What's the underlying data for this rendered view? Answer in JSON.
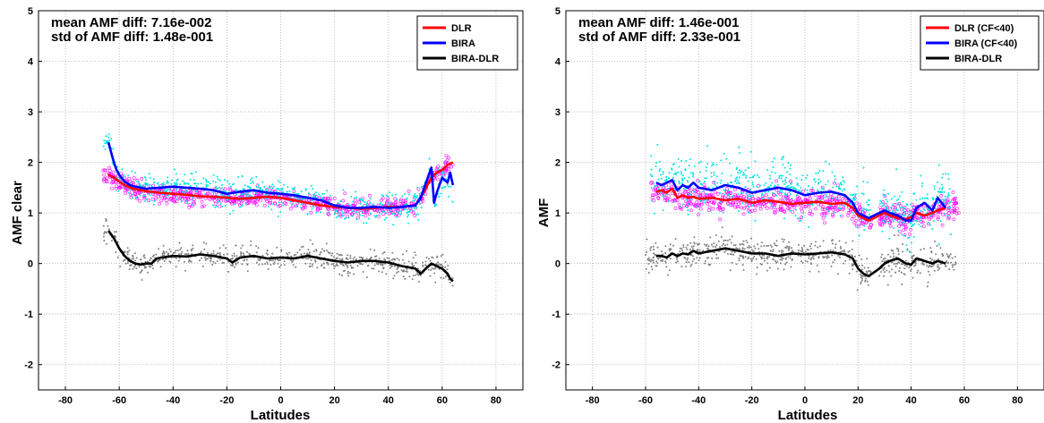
{
  "chart_data": [
    {
      "type": "scatter",
      "xlabel": "Latitudes",
      "ylabel": "AMF clear",
      "xlim": [
        -90,
        90
      ],
      "ylim": [
        -2.5,
        5
      ],
      "xticks": [
        -80,
        -60,
        -40,
        -20,
        0,
        20,
        40,
        60,
        80
      ],
      "yticks": [
        -2,
        -1,
        0,
        1,
        2,
        3,
        4,
        5
      ],
      "grid": true,
      "legend_position": "top-right",
      "annotations": [
        "mean AMF diff: 7.16e-002",
        "std of AMF diff: 1.48e-001"
      ],
      "series": [
        {
          "name": "DLR",
          "color": "#ff0000",
          "x": [
            -64,
            -62,
            -60,
            -58,
            -55,
            -50,
            -45,
            -40,
            -35,
            -30,
            -25,
            -20,
            -15,
            -10,
            -5,
            0,
            5,
            10,
            15,
            20,
            25,
            30,
            35,
            40,
            45,
            50,
            52,
            54,
            56,
            58,
            60,
            62,
            64
          ],
          "y": [
            1.75,
            1.7,
            1.62,
            1.55,
            1.48,
            1.43,
            1.4,
            1.38,
            1.36,
            1.33,
            1.32,
            1.3,
            1.28,
            1.3,
            1.32,
            1.3,
            1.25,
            1.2,
            1.15,
            1.12,
            1.1,
            1.08,
            1.1,
            1.12,
            1.12,
            1.15,
            1.3,
            1.5,
            1.7,
            1.8,
            1.85,
            1.95,
            2.0
          ]
        },
        {
          "name": "BIRA",
          "color": "#0000ff",
          "x": [
            -64,
            -63,
            -62,
            -61,
            -60,
            -58,
            -56,
            -54,
            -52,
            -50,
            -45,
            -40,
            -35,
            -30,
            -25,
            -20,
            -15,
            -10,
            -5,
            0,
            5,
            10,
            15,
            20,
            25,
            30,
            35,
            40,
            45,
            50,
            52,
            54,
            56,
            57,
            58,
            60,
            62,
            63,
            64
          ],
          "y": [
            2.4,
            2.2,
            2.0,
            1.85,
            1.75,
            1.62,
            1.55,
            1.52,
            1.5,
            1.48,
            1.5,
            1.52,
            1.5,
            1.48,
            1.45,
            1.38,
            1.42,
            1.45,
            1.4,
            1.38,
            1.35,
            1.3,
            1.25,
            1.15,
            1.1,
            1.1,
            1.12,
            1.1,
            1.12,
            1.15,
            1.3,
            1.6,
            1.9,
            1.2,
            1.4,
            1.7,
            1.6,
            1.8,
            1.55
          ]
        },
        {
          "name": "BIRA-DLR",
          "color": "#000000",
          "x": [
            -64,
            -62,
            -60,
            -58,
            -56,
            -54,
            -52,
            -50,
            -48,
            -46,
            -44,
            -40,
            -35,
            -30,
            -25,
            -20,
            -18,
            -15,
            -10,
            -5,
            0,
            5,
            10,
            15,
            20,
            25,
            30,
            35,
            40,
            45,
            50,
            52,
            53,
            56,
            58,
            60,
            62,
            63,
            64
          ],
          "y": [
            0.65,
            0.5,
            0.3,
            0.15,
            0.05,
            0.0,
            -0.02,
            0.0,
            0.0,
            0.1,
            0.12,
            0.15,
            0.14,
            0.18,
            0.15,
            0.1,
            0.02,
            0.12,
            0.15,
            0.1,
            0.12,
            0.1,
            0.15,
            0.1,
            0.05,
            0.02,
            0.05,
            0.05,
            0.02,
            -0.05,
            -0.1,
            -0.2,
            -0.15,
            0.0,
            -0.05,
            -0.1,
            -0.2,
            -0.3,
            -0.35
          ]
        }
      ],
      "scatter_series": [
        {
          "color": "#ff00ff",
          "x_range": [
            -66,
            64
          ],
          "y_offset": 0.0,
          "spread": 0.12,
          "ref": "DLR"
        },
        {
          "color": "#00e5e5",
          "x_range": [
            -66,
            64
          ],
          "y_offset": 0.0,
          "spread": 0.2,
          "ref": "BIRA"
        },
        {
          "color": "#808080",
          "x_range": [
            -66,
            64
          ],
          "y_offset": 0.0,
          "spread": 0.15,
          "ref": "BIRA-DLR"
        }
      ]
    },
    {
      "type": "scatter",
      "xlabel": "Latitudes",
      "ylabel": "AMF",
      "xlim": [
        -90,
        90
      ],
      "ylim": [
        -2.5,
        5
      ],
      "xticks": [
        -80,
        -60,
        -40,
        -20,
        0,
        20,
        40,
        60,
        80
      ],
      "yticks": [
        -2,
        -1,
        0,
        1,
        2,
        3,
        4,
        5
      ],
      "grid": true,
      "legend_position": "top-right",
      "annotations": [
        "mean AMF diff: 1.46e-001",
        "std of AMF diff: 2.33e-001"
      ],
      "series": [
        {
          "name": "DLR (CF<40)",
          "color": "#ff0000",
          "x": [
            -56,
            -54,
            -52,
            -50,
            -48,
            -46,
            -44,
            -42,
            -40,
            -35,
            -30,
            -25,
            -20,
            -15,
            -10,
            -5,
            0,
            5,
            10,
            15,
            18,
            20,
            22,
            24,
            28,
            30,
            32,
            35,
            38,
            40,
            42,
            45,
            48,
            50,
            53
          ],
          "y": [
            1.42,
            1.45,
            1.4,
            1.48,
            1.3,
            1.35,
            1.3,
            1.32,
            1.28,
            1.3,
            1.25,
            1.28,
            1.2,
            1.25,
            1.22,
            1.18,
            1.2,
            1.22,
            1.18,
            1.2,
            1.1,
            0.95,
            0.9,
            0.85,
            0.95,
            1.0,
            0.95,
            0.9,
            0.88,
            0.92,
            1.0,
            0.95,
            1.0,
            1.05,
            1.1
          ]
        },
        {
          "name": "BIRA (CF<40)",
          "color": "#0000ff",
          "x": [
            -56,
            -54,
            -52,
            -50,
            -48,
            -46,
            -44,
            -42,
            -40,
            -35,
            -30,
            -25,
            -20,
            -15,
            -10,
            -5,
            0,
            5,
            10,
            15,
            18,
            20,
            22,
            24,
            28,
            30,
            32,
            35,
            38,
            40,
            42,
            45,
            48,
            50,
            53
          ],
          "y": [
            1.6,
            1.55,
            1.6,
            1.65,
            1.45,
            1.55,
            1.5,
            1.6,
            1.5,
            1.45,
            1.55,
            1.5,
            1.4,
            1.45,
            1.5,
            1.45,
            1.35,
            1.4,
            1.42,
            1.35,
            1.2,
            1.0,
            0.95,
            0.9,
            1.0,
            1.05,
            1.0,
            0.95,
            0.85,
            0.85,
            1.1,
            1.2,
            1.05,
            1.3,
            1.1
          ]
        },
        {
          "name": "BIRA-DLR",
          "color": "#000000",
          "x": [
            -56,
            -54,
            -52,
            -50,
            -48,
            -46,
            -44,
            -42,
            -40,
            -35,
            -30,
            -25,
            -20,
            -15,
            -10,
            -5,
            0,
            5,
            10,
            15,
            18,
            20,
            22,
            24,
            28,
            30,
            32,
            35,
            38,
            40,
            42,
            45,
            48,
            50,
            53
          ],
          "y": [
            0.15,
            0.15,
            0.12,
            0.2,
            0.15,
            0.2,
            0.18,
            0.25,
            0.2,
            0.25,
            0.3,
            0.25,
            0.2,
            0.2,
            0.15,
            0.2,
            0.18,
            0.2,
            0.22,
            0.18,
            0.1,
            -0.1,
            -0.2,
            -0.25,
            -0.1,
            0.0,
            0.05,
            0.1,
            0.0,
            -0.02,
            0.1,
            0.05,
            0.0,
            0.05,
            0.0
          ]
        }
      ],
      "scatter_series": [
        {
          "color": "#ff00ff",
          "x_range": [
            -58,
            58
          ],
          "y_offset": 0.0,
          "spread": 0.18,
          "ref": "DLR (CF<40)"
        },
        {
          "color": "#00e5e5",
          "x_range": [
            -58,
            55
          ],
          "y_offset": 0.15,
          "spread": 0.35,
          "ref": "BIRA (CF<40)"
        },
        {
          "color": "#808080",
          "x_range": [
            -60,
            58
          ],
          "y_offset": 0.0,
          "spread": 0.2,
          "ref": "BIRA-DLR"
        }
      ]
    }
  ]
}
